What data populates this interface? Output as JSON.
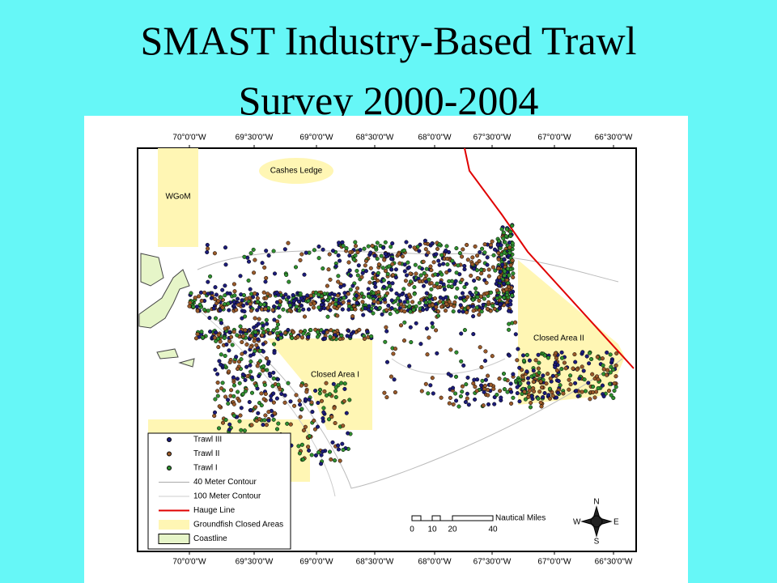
{
  "title_lines": [
    "SMAST Industry-Based Trawl",
    "Survey 2000-2004"
  ],
  "map": {
    "longitude_labels": [
      "70°0'0\"W",
      "69°30'0\"W",
      "69°0'0\"W",
      "68°30'0\"W",
      "68°0'0\"W",
      "67°30'0\"W",
      "67°0'0\"W",
      "66°30'0\"W"
    ],
    "area_labels": [
      "Cashes Ledge",
      "WGoM",
      "Closed Area I",
      "Closed Area II"
    ],
    "legend": [
      "Trawl III",
      "Trawl II",
      "Trawl I",
      "40 Meter Contour",
      "100 Meter Contour",
      "Hauge Line",
      "Groundfish Closed Areas",
      "Coastline"
    ],
    "scale_bar": {
      "ticks": [
        "0",
        "10",
        "20",
        "40"
      ],
      "unit": "Nautical Miles"
    },
    "compass": [
      "N",
      "S",
      "E",
      "W"
    ]
  }
}
